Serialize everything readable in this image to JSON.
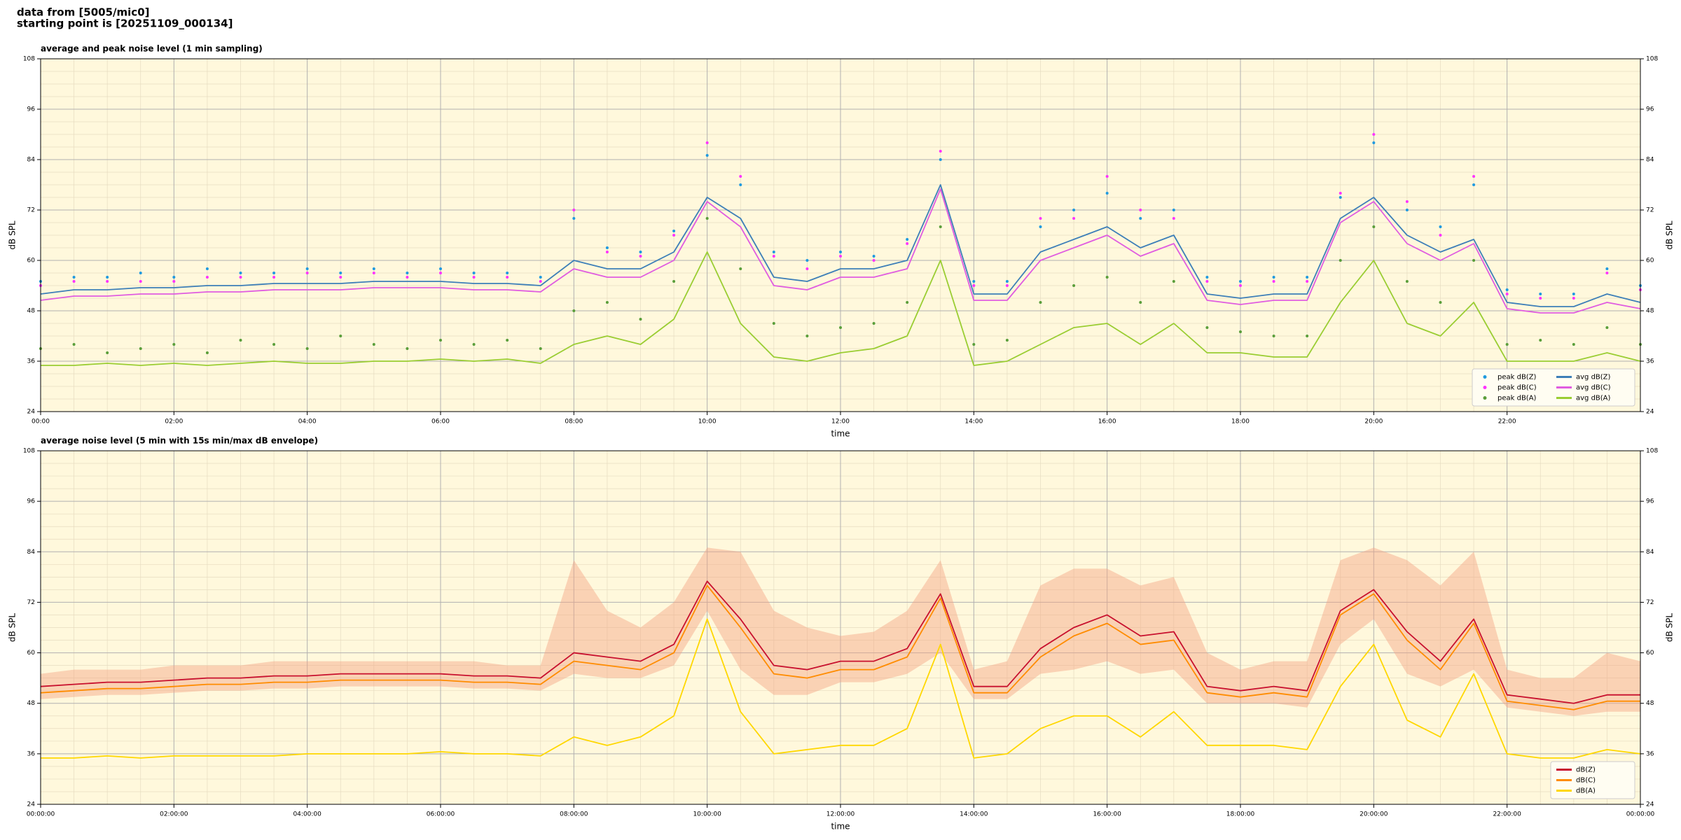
{
  "header": [
    "data from [5005/mic0]",
    "starting point is [20251109_000134]"
  ],
  "chart_data": [
    {
      "type": "line",
      "title": "average and peak noise level (1 min sampling)",
      "xlabel": "time",
      "ylabel": "dB SPL",
      "xlim": [
        0,
        24
      ],
      "ylim": [
        24,
        108
      ],
      "xticks": [
        {
          "value": 0,
          "label": "00:00"
        },
        {
          "value": 2,
          "label": "02:00"
        },
        {
          "value": 4,
          "label": "04:00"
        },
        {
          "value": 6,
          "label": "06:00"
        },
        {
          "value": 8,
          "label": "08:00"
        },
        {
          "value": 10,
          "label": "10:00"
        },
        {
          "value": 12,
          "label": "12:00"
        },
        {
          "value": 14,
          "label": "14:00"
        },
        {
          "value": 16,
          "label": "16:00"
        },
        {
          "value": 18,
          "label": "18:00"
        },
        {
          "value": 20,
          "label": "20:00"
        },
        {
          "value": 22,
          "label": "22:00"
        }
      ],
      "yticks": [
        24,
        36,
        48,
        60,
        72,
        84,
        96,
        108
      ],
      "grid": true,
      "legend": "lower right",
      "x": [
        0,
        0.5,
        1,
        1.5,
        2,
        2.5,
        3,
        3.5,
        4,
        4.5,
        5,
        5.5,
        6,
        6.5,
        7,
        7.5,
        8,
        8.5,
        9,
        9.5,
        10,
        10.5,
        11,
        11.5,
        12,
        12.5,
        13,
        13.5,
        14,
        14.5,
        15,
        15.5,
        16,
        16.5,
        17,
        17.5,
        18,
        18.5,
        19,
        19.5,
        20,
        20.5,
        21,
        21.5,
        22,
        22.5,
        23,
        23.5,
        24
      ],
      "series": [
        {
          "name": "peak dB(Z)",
          "mode": "markers",
          "color": "#1f9ae0",
          "values": [
            55,
            56,
            56,
            57,
            56,
            58,
            57,
            57,
            58,
            57,
            58,
            57,
            58,
            57,
            57,
            56,
            70,
            63,
            62,
            67,
            85,
            78,
            62,
            60,
            62,
            61,
            65,
            84,
            55,
            55,
            68,
            72,
            76,
            70,
            72,
            56,
            55,
            56,
            56,
            75,
            88,
            72,
            68,
            78,
            53,
            52,
            52,
            58,
            54
          ]
        },
        {
          "name": "peak dB(C)",
          "mode": "markers",
          "color": "#ff33ff",
          "values": [
            54,
            55,
            55,
            55,
            55,
            56,
            56,
            56,
            57,
            56,
            57,
            56,
            57,
            56,
            56,
            55,
            72,
            62,
            61,
            66,
            88,
            80,
            61,
            58,
            61,
            60,
            64,
            86,
            54,
            54,
            70,
            70,
            80,
            72,
            70,
            55,
            54,
            55,
            55,
            76,
            90,
            74,
            66,
            80,
            52,
            51,
            51,
            57,
            53
          ]
        },
        {
          "name": "peak dB(A)",
          "mode": "markers",
          "color": "#5a9e3a",
          "values": [
            39,
            40,
            38,
            39,
            40,
            38,
            41,
            40,
            39,
            42,
            40,
            39,
            41,
            40,
            41,
            39,
            48,
            50,
            46,
            55,
            70,
            58,
            45,
            42,
            44,
            45,
            50,
            68,
            40,
            41,
            50,
            54,
            56,
            50,
            55,
            44,
            43,
            42,
            42,
            60,
            68,
            55,
            50,
            60,
            40,
            41,
            40,
            44,
            40
          ]
        },
        {
          "name": "avg dB(Z)",
          "mode": "lines",
          "color": "#3d7fb8",
          "values": [
            52,
            53,
            53,
            53.5,
            53.5,
            54,
            54,
            54.5,
            54.5,
            54.5,
            55,
            55,
            55,
            54.5,
            54.5,
            54,
            60,
            58,
            58,
            62,
            75,
            70,
            56,
            55,
            58,
            58,
            60,
            78,
            52,
            52,
            62,
            65,
            68,
            63,
            66,
            52,
            51,
            52,
            52,
            70,
            75,
            66,
            62,
            65,
            50,
            49,
            49,
            52,
            50
          ]
        },
        {
          "name": "avg dB(C)",
          "mode": "lines",
          "color": "#e05ce0",
          "values": [
            50.5,
            51.5,
            51.5,
            52,
            52,
            52.5,
            52.5,
            53,
            53,
            53,
            53.5,
            53.5,
            53.5,
            53,
            53,
            52.5,
            58,
            56,
            56,
            60,
            74,
            68,
            54,
            53,
            56,
            56,
            58,
            77,
            50.5,
            50.5,
            60,
            63,
            66,
            61,
            64,
            50.5,
            49.5,
            50.5,
            50.5,
            69,
            74,
            64,
            60,
            64,
            48.5,
            47.5,
            47.5,
            50,
            48.5
          ]
        },
        {
          "name": "avg dB(A)",
          "mode": "lines",
          "color": "#9acd32",
          "values": [
            35,
            35,
            35.5,
            35,
            35.5,
            35,
            35.5,
            36,
            35.5,
            35.5,
            36,
            36,
            36.5,
            36,
            36.5,
            35.5,
            40,
            42,
            40,
            46,
            62,
            45,
            37,
            36,
            38,
            39,
            42,
            60,
            35,
            36,
            40,
            44,
            45,
            40,
            45,
            38,
            38,
            37,
            37,
            50,
            60,
            45,
            42,
            50,
            36,
            36,
            36,
            38,
            36
          ]
        }
      ]
    },
    {
      "type": "line",
      "title": "average noise level (5 min with 15s min/max dB envelope)",
      "xlabel": "time",
      "ylabel": "dB SPL",
      "xlim": [
        0,
        24
      ],
      "ylim": [
        24,
        108
      ],
      "xticks": [
        {
          "value": 0,
          "label": "00:00:00"
        },
        {
          "value": 2,
          "label": "02:00:00"
        },
        {
          "value": 4,
          "label": "04:00:00"
        },
        {
          "value": 6,
          "label": "06:00:00"
        },
        {
          "value": 8,
          "label": "08:00:00"
        },
        {
          "value": 10,
          "label": "10:00:00"
        },
        {
          "value": 12,
          "label": "12:00:00"
        },
        {
          "value": 14,
          "label": "14:00:00"
        },
        {
          "value": 16,
          "label": "16:00:00"
        },
        {
          "value": 18,
          "label": "18:00:00"
        },
        {
          "value": 20,
          "label": "20:00:00"
        },
        {
          "value": 22,
          "label": "22:00:00"
        },
        {
          "value": 24,
          "label": "00:00:00"
        }
      ],
      "yticks": [
        24,
        36,
        48,
        60,
        72,
        84,
        96,
        108
      ],
      "grid": true,
      "legend": "lower right",
      "x": [
        0,
        0.5,
        1,
        1.5,
        2,
        2.5,
        3,
        3.5,
        4,
        4.5,
        5,
        5.5,
        6,
        6.5,
        7,
        7.5,
        8,
        8.5,
        9,
        9.5,
        10,
        10.5,
        11,
        11.5,
        12,
        12.5,
        13,
        13.5,
        14,
        14.5,
        15,
        15.5,
        16,
        16.5,
        17,
        17.5,
        18,
        18.5,
        19,
        19.5,
        20,
        20.5,
        21,
        21.5,
        22,
        22.5,
        23,
        23.5,
        24
      ],
      "envelope": {
        "color": "#f4a582",
        "low": [
          49,
          49.5,
          50,
          50,
          50.5,
          51,
          51,
          51.5,
          51.5,
          52,
          52,
          52,
          52,
          51.5,
          51.5,
          51,
          55,
          54,
          54,
          57,
          70,
          56,
          50,
          50,
          53,
          53,
          55,
          60,
          49,
          49,
          55,
          56,
          58,
          55,
          56,
          48,
          48,
          48,
          47,
          62,
          68,
          55,
          52,
          56,
          47,
          46,
          45,
          46,
          46
        ],
        "high": [
          55,
          56,
          56,
          56,
          57,
          57,
          57,
          58,
          58,
          58,
          58,
          58,
          58,
          58,
          57,
          57,
          82,
          70,
          66,
          72,
          85,
          84,
          70,
          66,
          64,
          65,
          70,
          82,
          56,
          58,
          76,
          80,
          80,
          76,
          78,
          60,
          56,
          58,
          58,
          82,
          85,
          82,
          76,
          84,
          56,
          54,
          54,
          60,
          58
        ]
      },
      "series": [
        {
          "name": "dB(Z)",
          "mode": "lines",
          "color": "#c8102e",
          "values": [
            52,
            52.5,
            53,
            53,
            53.5,
            54,
            54,
            54.5,
            54.5,
            55,
            55,
            55,
            55,
            54.5,
            54.5,
            54,
            60,
            59,
            58,
            62,
            77,
            68,
            57,
            56,
            58,
            58,
            61,
            74,
            52,
            52,
            61,
            66,
            69,
            64,
            65,
            52,
            51,
            52,
            51,
            70,
            75,
            65,
            58,
            68,
            50,
            49,
            48,
            50,
            50
          ]
        },
        {
          "name": "dB(C)",
          "mode": "lines",
          "color": "#ff8c00",
          "values": [
            50.5,
            51,
            51.5,
            51.5,
            52,
            52.5,
            52.5,
            53,
            53,
            53.5,
            53.5,
            53.5,
            53.5,
            53,
            53,
            52.5,
            58,
            57,
            56,
            60,
            76,
            66,
            55,
            54,
            56,
            56,
            59,
            73,
            50.5,
            50.5,
            59,
            64,
            67,
            62,
            63,
            50.5,
            49.5,
            50.5,
            49.5,
            69,
            74,
            63,
            56,
            67,
            48.5,
            47.5,
            46.5,
            48.5,
            48.5
          ]
        },
        {
          "name": "dB(A)",
          "mode": "lines",
          "color": "#ffd700",
          "values": [
            35,
            35,
            35.5,
            35,
            35.5,
            35.5,
            35.5,
            35.5,
            36,
            36,
            36,
            36,
            36.5,
            36,
            36,
            35.5,
            40,
            38,
            40,
            45,
            68,
            46,
            36,
            37,
            38,
            38,
            42,
            62,
            35,
            36,
            42,
            45,
            45,
            40,
            46,
            38,
            38,
            38,
            37,
            52,
            62,
            44,
            40,
            55,
            36,
            35,
            35,
            37,
            36
          ]
        }
      ]
    }
  ]
}
